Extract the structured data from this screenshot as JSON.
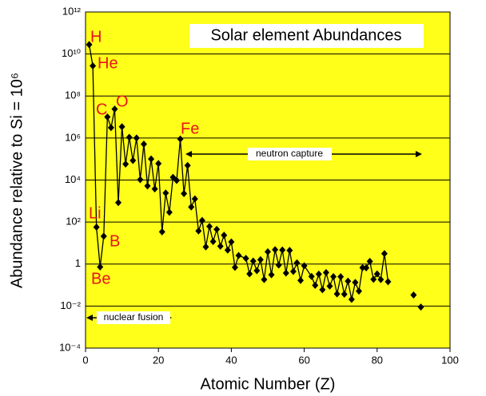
{
  "chart_data": {
    "type": "line",
    "title": "Solar element Abundances",
    "xlabel": "Atomic Number (Z)",
    "ylabel": "Abundance relative to Si = 10⁶",
    "xlim": [
      0,
      100
    ],
    "xticks": [
      0,
      20,
      40,
      60,
      80,
      100
    ],
    "ylim": [
      0.0001,
      1000000000000
    ],
    "log_y": true,
    "grid": true,
    "background": "#ffff1a",
    "yticks": [
      {
        "value": 0.0001,
        "label": "10⁻⁴"
      },
      {
        "value": 0.01,
        "label": "10⁻²"
      },
      1,
      {
        "value": 100,
        "label": "10²"
      },
      {
        "value": 10000,
        "label": "10⁴"
      },
      {
        "value": 1000000,
        "label": "10⁶"
      },
      {
        "value": 100000000,
        "label": "10⁸"
      },
      {
        "value": 10000000000,
        "label": "10¹⁰"
      },
      {
        "value": 1000000000000,
        "label": "10¹²"
      }
    ],
    "series": [
      {
        "color": "#000000",
        "line": true,
        "x": [
          1,
          2,
          3,
          4,
          5,
          6,
          7,
          8,
          9,
          10,
          11,
          12,
          13,
          14,
          15,
          16,
          17,
          18,
          19,
          20,
          21,
          22,
          23,
          24,
          25,
          26,
          27,
          28,
          29,
          30,
          31,
          32,
          33,
          34,
          35,
          36,
          37,
          38,
          39,
          40,
          41,
          42,
          44,
          45,
          46,
          47,
          48,
          49,
          50,
          51,
          52,
          53,
          54,
          55,
          56,
          57,
          58,
          59,
          60,
          62,
          63,
          64,
          65,
          66,
          67,
          68,
          69,
          70,
          71,
          72,
          73,
          74,
          75,
          76,
          77,
          78,
          79,
          80,
          81,
          82,
          83
        ],
        "values": [
          27900000000,
          2720000000,
          57.1,
          0.73,
          21.2,
          10100000,
          3130000,
          23800000,
          843,
          3440000,
          57400,
          1074000,
          84900,
          1000000,
          10400,
          515000,
          5240,
          101000,
          3770,
          61100,
          34.2,
          2400,
          293,
          13500,
          9550,
          900000,
          2250,
          49300,
          522,
          1260,
          37.8,
          119,
          6.56,
          62.1,
          11.8,
          45,
          7.09,
          23.5,
          4.64,
          11.4,
          0.698,
          2.55,
          1.86,
          0.344,
          1.39,
          0.486,
          1.61,
          0.184,
          3.82,
          0.309,
          4.81,
          0.9,
          4.7,
          0.372,
          4.49,
          0.446,
          1.136,
          0.167,
          0.828,
          0.258,
          0.097,
          0.33,
          0.0603,
          0.394,
          0.0889,
          0.251,
          0.0378,
          0.248,
          0.0367,
          0.154,
          0.0207,
          0.133,
          0.0517,
          0.675,
          0.661,
          1.34,
          0.187,
          0.34,
          0.184,
          3.15,
          0.144
        ]
      },
      {
        "color": "#000000",
        "line": false,
        "x": [
          90,
          92
        ],
        "values": [
          0.0335,
          0.009
        ]
      }
    ],
    "annotations": [
      {
        "text": "H"
      },
      {
        "text": "He"
      },
      {
        "text": "Li"
      },
      {
        "text": "Be"
      },
      {
        "text": "B"
      },
      {
        "text": "C"
      },
      {
        "text": "O"
      },
      {
        "text": "Fe"
      },
      {
        "text": "neutron capture"
      },
      {
        "text": "nuclear fusion"
      }
    ]
  }
}
